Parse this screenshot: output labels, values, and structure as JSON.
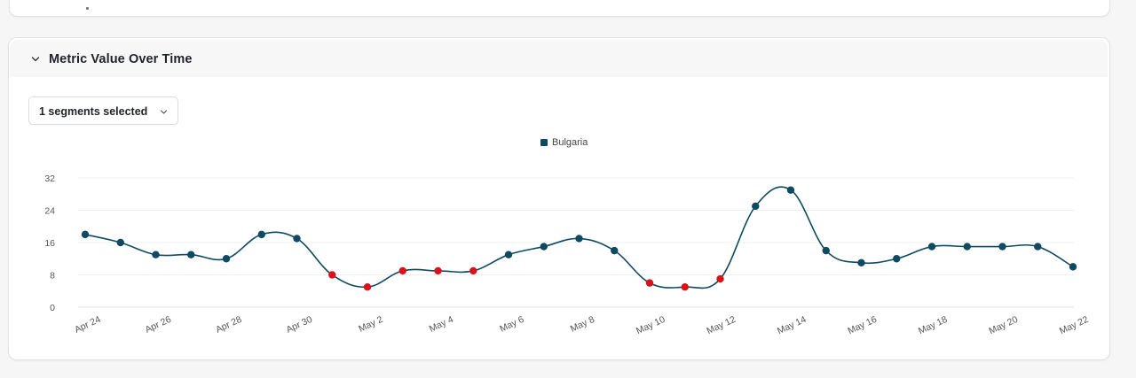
{
  "panel": {
    "title": "Metric Value Over Time"
  },
  "segment_select": {
    "label": "1 segments selected"
  },
  "chart_data": {
    "type": "line",
    "series": [
      {
        "name": "Bulgaria",
        "color": "#0f4a62",
        "anomaly_color": "#d7141a",
        "x": [
          "Apr 24",
          "Apr 25",
          "Apr 26",
          "Apr 27",
          "Apr 28",
          "Apr 29",
          "Apr 30",
          "May 1",
          "May 2",
          "May 3",
          "May 4",
          "May 5",
          "May 6",
          "May 7",
          "May 8",
          "May 9",
          "May 10",
          "May 11",
          "May 12",
          "May 13",
          "May 14",
          "May 15",
          "May 16",
          "May 17",
          "May 18",
          "May 19",
          "May 20",
          "May 21",
          "May 22"
        ],
        "values": [
          18,
          16,
          13,
          13,
          12,
          18,
          17,
          8,
          5,
          9,
          9,
          9,
          13,
          15,
          17,
          14,
          6,
          5,
          7,
          25,
          29,
          14,
          11,
          12,
          15,
          15,
          15,
          15,
          10
        ],
        "anomalies": [
          false,
          false,
          false,
          false,
          false,
          false,
          false,
          true,
          true,
          true,
          true,
          true,
          false,
          false,
          false,
          false,
          true,
          true,
          true,
          false,
          false,
          false,
          false,
          false,
          false,
          false,
          false,
          false,
          false
        ]
      }
    ],
    "x_tick_labels": [
      "Apr 24",
      "Apr 26",
      "Apr 28",
      "Apr 30",
      "May 2",
      "May 4",
      "May 6",
      "May 8",
      "May 10",
      "May 12",
      "May 14",
      "May 16",
      "May 18",
      "May 20",
      "May 22"
    ],
    "y_ticks": [
      0,
      8,
      16,
      24,
      32
    ],
    "ylim": [
      0,
      32
    ],
    "grid": true,
    "legend": "top-center",
    "title": "",
    "xlabel": "",
    "ylabel": ""
  }
}
